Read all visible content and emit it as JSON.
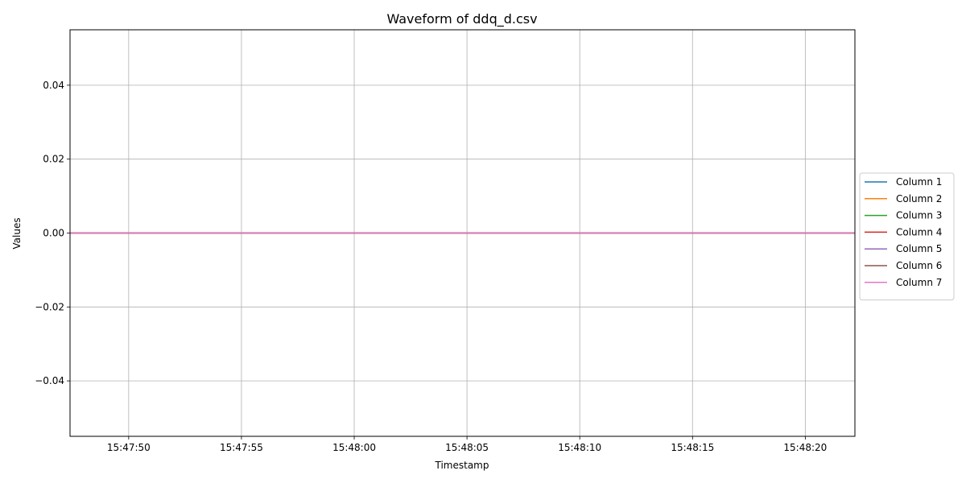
{
  "chart_data": {
    "type": "line",
    "title": "Waveform of ddq_d.csv",
    "xlabel": "Timestamp",
    "ylabel": "Values",
    "x_range": [
      "15:47:47.4",
      "15:48:22.2"
    ],
    "ylim": [
      -0.055,
      0.055
    ],
    "x_ticks": [
      "15:47:50",
      "15:47:55",
      "15:48:00",
      "15:48:05",
      "15:48:10",
      "15:48:15",
      "15:48:20"
    ],
    "y_ticks": [
      "0.04",
      "0.02",
      "0.00",
      "−0.02",
      "−0.04"
    ],
    "y_tick_values": [
      0.04,
      0.02,
      0.0,
      -0.02,
      -0.04
    ],
    "grid": true,
    "legend_position": "center right, outside plot",
    "x": [
      "15:47:47.4",
      "15:48:22.2"
    ],
    "series": [
      {
        "name": "Column 1",
        "color": "#1f77b4",
        "values": [
          0,
          0
        ]
      },
      {
        "name": "Column 2",
        "color": "#ff7f0e",
        "values": [
          0,
          0
        ]
      },
      {
        "name": "Column 3",
        "color": "#2ca02c",
        "values": [
          0,
          0
        ]
      },
      {
        "name": "Column 4",
        "color": "#d62728",
        "values": [
          0,
          0
        ]
      },
      {
        "name": "Column 5",
        "color": "#9467bd",
        "values": [
          0,
          0
        ]
      },
      {
        "name": "Column 6",
        "color": "#8c564b",
        "values": [
          0,
          0
        ]
      },
      {
        "name": "Column 7",
        "color": "#e377c2",
        "values": [
          0,
          0
        ]
      }
    ]
  }
}
